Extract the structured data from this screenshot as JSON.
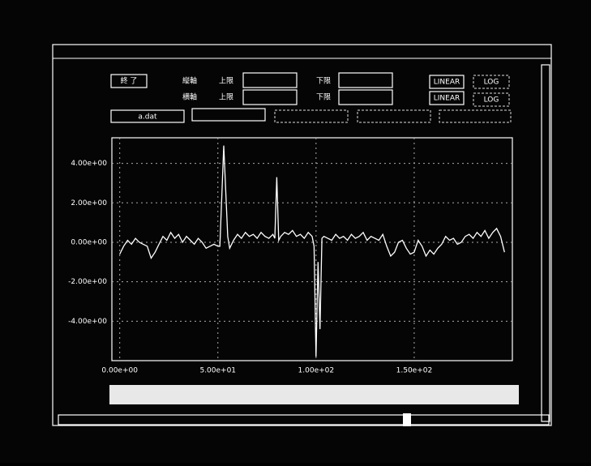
{
  "ui": {
    "button": "終 了",
    "rows": [
      {
        "axis": "縦軸",
        "upper": "上限",
        "lower": "下限",
        "linear": "LINEAR",
        "log": "LOG"
      },
      {
        "axis": "横軸",
        "upper": "上限",
        "lower": "下限",
        "linear": "LINEAR",
        "log": "LOG"
      }
    ],
    "file": "a.dat"
  },
  "chart_data": {
    "type": "line",
    "color": "#ffffff",
    "grid": true,
    "x": [
      0,
      2,
      4,
      6,
      8,
      10,
      12,
      14,
      16,
      18,
      20,
      22,
      24,
      26,
      28,
      30,
      32,
      34,
      36,
      38,
      40,
      42,
      44,
      46,
      48,
      50,
      51,
      53,
      55,
      56,
      58,
      60,
      62,
      64,
      66,
      68,
      70,
      72,
      74,
      76,
      78,
      79,
      80,
      81,
      82,
      84,
      86,
      88,
      90,
      92,
      94,
      96,
      98,
      99,
      100,
      101,
      102,
      103,
      104,
      106,
      108,
      110,
      112,
      114,
      116,
      118,
      120,
      122,
      124,
      126,
      128,
      130,
      132,
      134,
      136,
      138,
      140,
      142,
      144,
      146,
      148,
      150,
      152,
      154,
      156,
      158,
      160,
      162,
      164,
      166,
      168,
      170,
      172,
      174,
      176,
      178,
      180,
      182,
      184,
      186,
      188,
      190,
      192,
      194,
      196
    ],
    "values": [
      -0.6,
      -0.2,
      0.1,
      -0.1,
      0.2,
      0,
      -0.1,
      -0.2,
      -0.8,
      -0.5,
      -0.1,
      0.3,
      0.1,
      0.5,
      0.2,
      0.4,
      0,
      0.3,
      0.1,
      -0.1,
      0.2,
      0,
      -0.3,
      -0.2,
      -0.1,
      -0.2,
      -0.2,
      4.9,
      0.3,
      -0.3,
      0.1,
      0.4,
      0.2,
      0.5,
      0.3,
      0.4,
      0.2,
      0.5,
      0.3,
      0.2,
      0.4,
      0.2,
      3.3,
      0.1,
      0.3,
      0.5,
      0.4,
      0.6,
      0.3,
      0.4,
      0.2,
      0.5,
      0.3,
      -0.2,
      -5.8,
      -1,
      -4.4,
      0.2,
      0.3,
      0.2,
      0.1,
      0.4,
      0.2,
      0.3,
      0.1,
      0.4,
      0.2,
      0.3,
      0.5,
      0.1,
      0.3,
      0.2,
      0.1,
      0.4,
      -0.2,
      -0.7,
      -0.5,
      0,
      0.1,
      -0.3,
      -0.6,
      -0.5,
      0.1,
      -0.2,
      -0.7,
      -0.4,
      -0.6,
      -0.3,
      -0.1,
      0.3,
      0.1,
      0.2,
      -0.1,
      0,
      0.3,
      0.4,
      0.2,
      0.5,
      0.3,
      0.6,
      0.2,
      0.5,
      0.7,
      0.3,
      -0.5
    ],
    "xlim": [
      -4,
      200
    ],
    "ylim": [
      -6,
      5.3
    ],
    "xticks": [
      {
        "value": 0,
        "label": "0.00e+00"
      },
      {
        "value": 50,
        "label": "5.00e+01"
      },
      {
        "value": 100,
        "label": "1.00e+02"
      },
      {
        "value": 150,
        "label": "1.50e+02"
      }
    ],
    "yticks": [
      {
        "value": 4,
        "label": "4.00e+00"
      },
      {
        "value": 2,
        "label": "2.00e+00"
      },
      {
        "value": 0,
        "label": "0.00e+00"
      },
      {
        "value": -2,
        "label": "-2.00e+00"
      },
      {
        "value": -4,
        "label": "-4.00e+00"
      }
    ]
  }
}
